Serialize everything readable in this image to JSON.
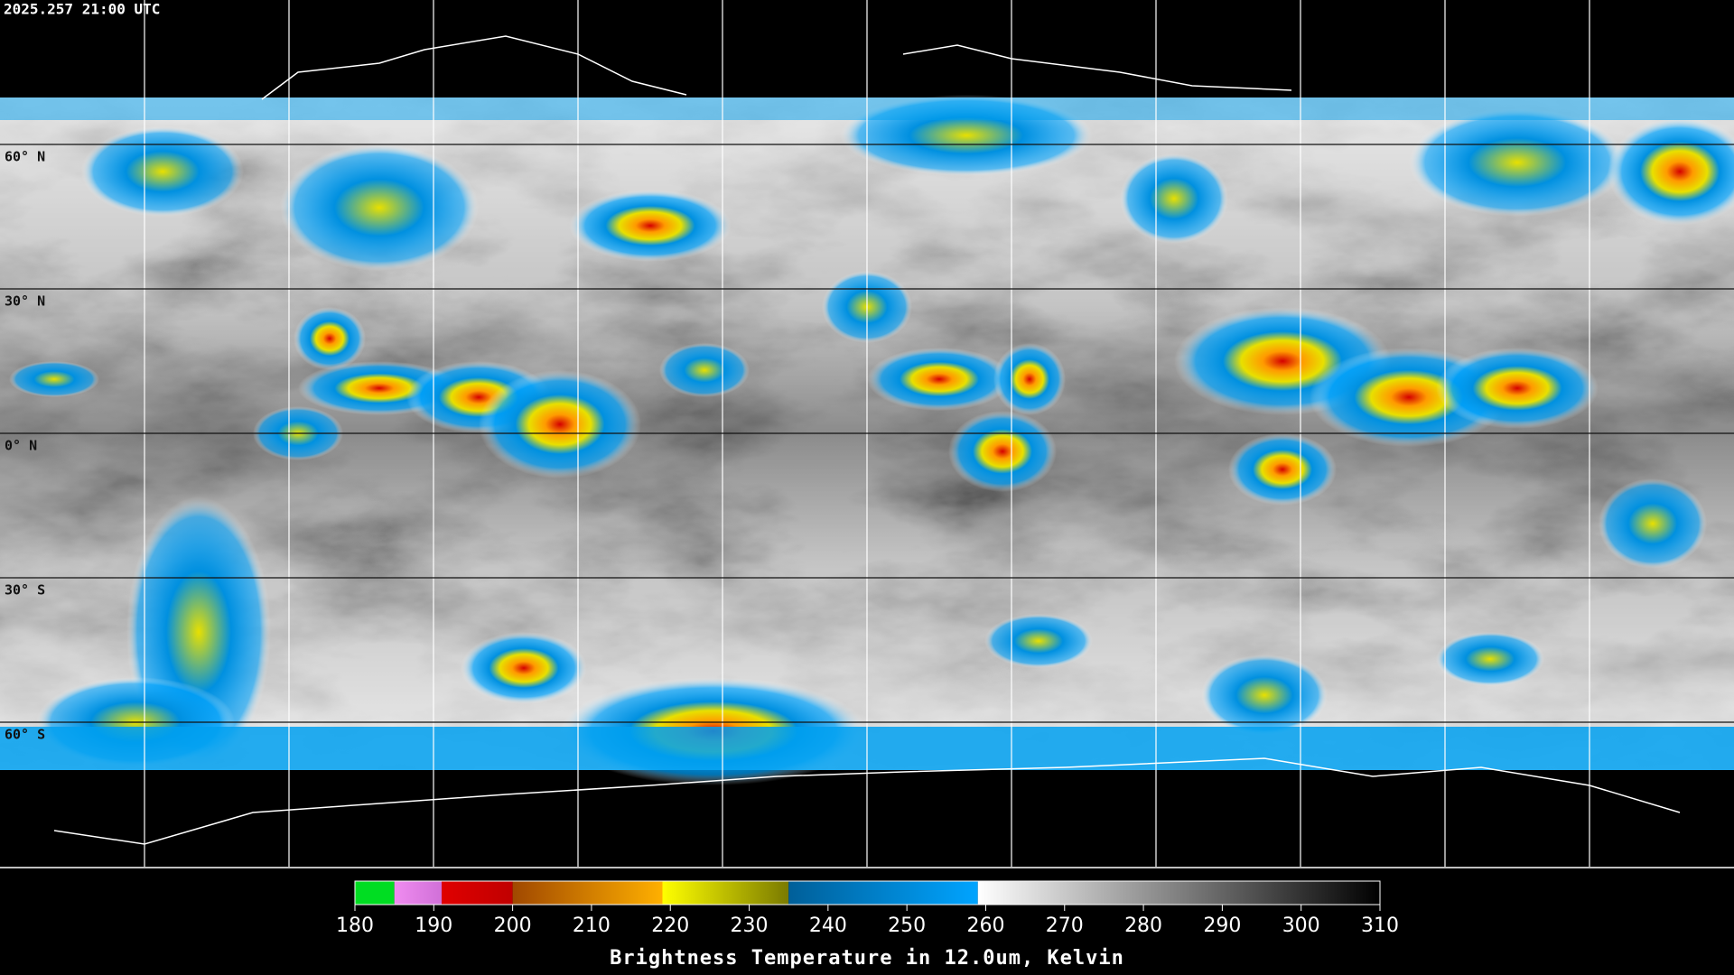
{
  "header": {
    "timestamp": "2025.257 21:00 UTC"
  },
  "map": {
    "lat_labels": [
      {
        "value": 60,
        "label": "60° N"
      },
      {
        "value": 30,
        "label": "30° N"
      },
      {
        "value": 0,
        "label": "0° N"
      },
      {
        "value": -30,
        "label": "30° S"
      },
      {
        "value": -60,
        "label": "60° S"
      }
    ]
  },
  "colorbar": {
    "range": [
      180,
      310
    ],
    "ticks": [
      180,
      190,
      200,
      210,
      220,
      230,
      240,
      250,
      260,
      270,
      280,
      290,
      300,
      310
    ],
    "segments": [
      {
        "from": 180,
        "to": 185,
        "colors": [
          "#00dd22",
          "#00dd22"
        ]
      },
      {
        "from": 185,
        "to": 191,
        "colors": [
          "#f08cf0",
          "#d070d8"
        ]
      },
      {
        "from": 191,
        "to": 200,
        "colors": [
          "#e00000",
          "#c00000"
        ]
      },
      {
        "from": 200,
        "to": 219,
        "colors": [
          "#a04800",
          "#ffb000"
        ]
      },
      {
        "from": 219,
        "to": 235,
        "colors": [
          "#ffff00",
          "#7a7a00"
        ]
      },
      {
        "from": 235,
        "to": 259,
        "colors": [
          "#005f99",
          "#00a4ff"
        ]
      },
      {
        "from": 259,
        "to": 310,
        "colors": [
          "#ffffff",
          "#000000"
        ]
      }
    ],
    "title": "Brightness Temperature in 12.0um, Kelvin"
  }
}
